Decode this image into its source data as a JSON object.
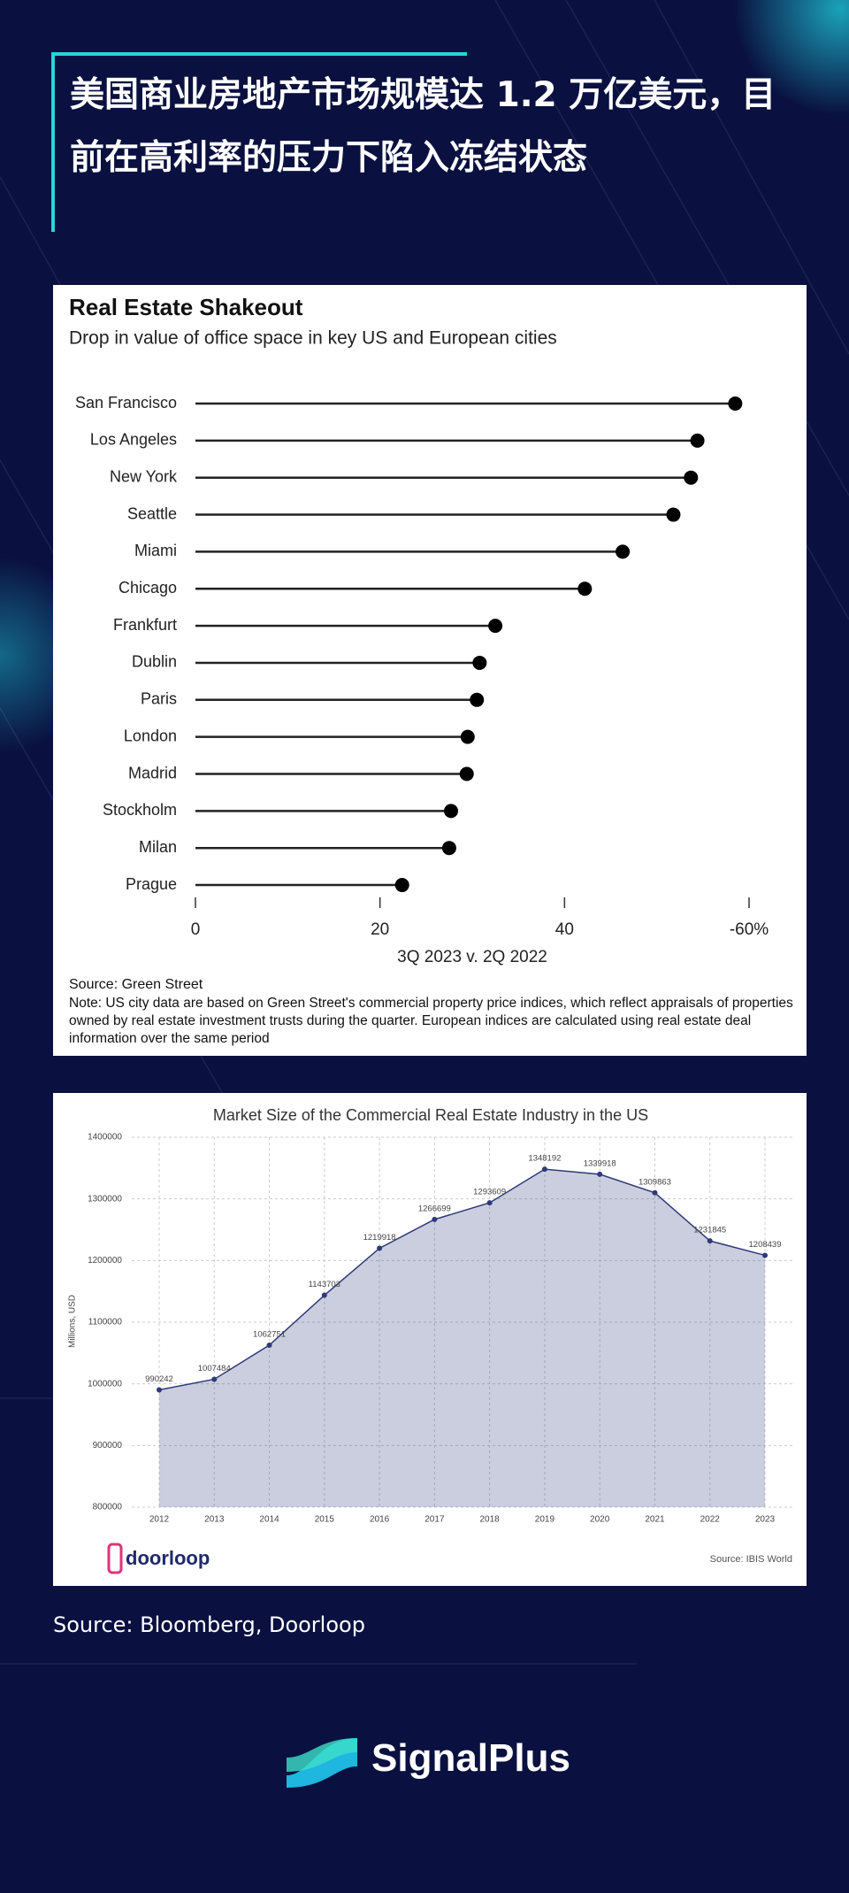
{
  "header": {
    "title": "美国商业房地产市场规模达 1.2 万亿美元，目前在高利率的压力下陷入冻结状态"
  },
  "chart_data": [
    {
      "type": "lollipop",
      "title": "Real Estate Shakeout",
      "subtitle": "Drop in value of office space in key US and European cities",
      "categories": [
        "San Francisco",
        "Los Angeles",
        "New York",
        "Seattle",
        "Miami",
        "Chicago",
        "Frankfurt",
        "Dublin",
        "Paris",
        "London",
        "Madrid",
        "Stockholm",
        "Milan",
        "Prague"
      ],
      "values": [
        58.5,
        54.4,
        53.7,
        51.8,
        46.3,
        42.2,
        32.5,
        30.8,
        30.5,
        29.5,
        29.4,
        27.7,
        27.5,
        22.4
      ],
      "color": "#000000",
      "xlim": [
        0,
        60
      ],
      "xticks": [
        0,
        20,
        40,
        {
          "value": 60,
          "label": "-60%"
        }
      ],
      "xlabel": "3Q 2023 v. 2Q 2022",
      "source": "Source: Green Street",
      "note": "Note: US city data are based on Green Street's commercial property price indices, which reflect appraisals of properties owned by real estate investment trusts during the quarter. European indices are calculated using real estate deal information over the same period"
    },
    {
      "type": "area",
      "title": "Market Size of the Commercial Real Estate Industry in the US",
      "categories": [
        "2012",
        "2013",
        "2014",
        "2015",
        "2016",
        "2017",
        "2018",
        "2019",
        "2020",
        "2021",
        "2022",
        "2023"
      ],
      "values": [
        990242,
        1007484,
        1062751,
        1143703,
        1219918,
        1266699,
        1293609,
        1348192,
        1339918,
        1309863,
        1231845,
        1208439
      ],
      "color": "#2e3a7a",
      "ylim": [
        800000,
        1400000
      ],
      "yticks": [
        800000,
        900000,
        1000000,
        1100000,
        1200000,
        1300000,
        1400000
      ],
      "ylabel": "Millions, USD",
      "grid": true,
      "logo": "doorloop",
      "source": "Source: IBIS World"
    }
  ],
  "footer": {
    "source": "Source: Bloomberg, Doorloop",
    "brand": "SignalPlus"
  }
}
